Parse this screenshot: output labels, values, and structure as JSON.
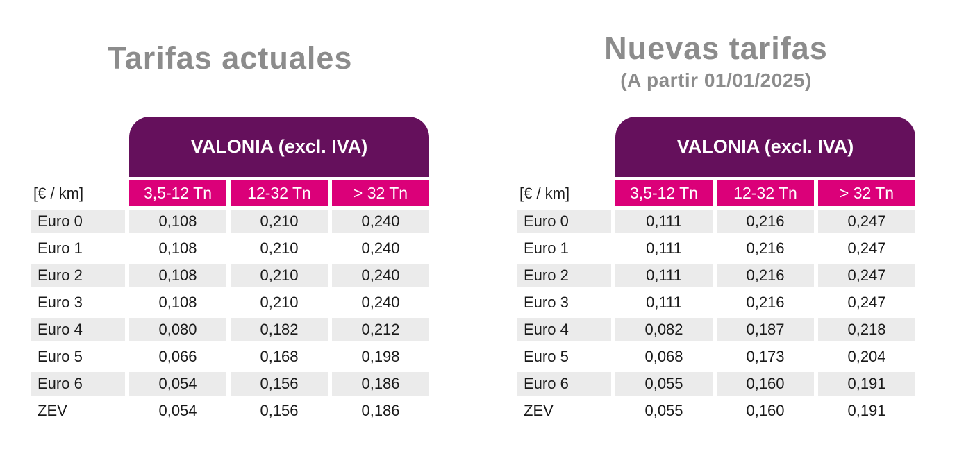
{
  "colors": {
    "purple": "#65105C",
    "pink": "#DB0079",
    "row_stripe": "#EBEBEB",
    "title_gray": "#8C8C8C",
    "text": "#1A1A1A",
    "header_text": "#FFFFFF"
  },
  "tables": [
    {
      "title": "Tarifas actuales",
      "header": "VALONIA (excl. IVA)",
      "unit_label": "[€ / km]",
      "columns": [
        "3,5-12 Tn",
        "12-32 Tn",
        "> 32 Tn"
      ],
      "rows": [
        {
          "label": "Euro 0",
          "values": [
            "0,108",
            "0,210",
            "0,240"
          ]
        },
        {
          "label": "Euro 1",
          "values": [
            "0,108",
            "0,210",
            "0,240"
          ]
        },
        {
          "label": "Euro 2",
          "values": [
            "0,108",
            "0,210",
            "0,240"
          ]
        },
        {
          "label": "Euro 3",
          "values": [
            "0,108",
            "0,210",
            "0,240"
          ]
        },
        {
          "label": "Euro 4",
          "values": [
            "0,080",
            "0,182",
            "0,212"
          ]
        },
        {
          "label": "Euro 5",
          "values": [
            "0,066",
            "0,168",
            "0,198"
          ]
        },
        {
          "label": "Euro 6",
          "values": [
            "0,054",
            "0,156",
            "0,186"
          ]
        },
        {
          "label": "ZEV",
          "values": [
            "0,054",
            "0,156",
            "0,186"
          ]
        }
      ]
    },
    {
      "title": "Nuevas tarifas",
      "subtitle": "(A partir 01/01/2025)",
      "header": "VALONIA (excl. IVA)",
      "unit_label": "[€ / km]",
      "columns": [
        "3,5-12 Tn",
        "12-32 Tn",
        "> 32 Tn"
      ],
      "rows": [
        {
          "label": "Euro 0",
          "values": [
            "0,111",
            "0,216",
            "0,247"
          ]
        },
        {
          "label": "Euro 1",
          "values": [
            "0,111",
            "0,216",
            "0,247"
          ]
        },
        {
          "label": "Euro 2",
          "values": [
            "0,111",
            "0,216",
            "0,247"
          ]
        },
        {
          "label": "Euro 3",
          "values": [
            "0,111",
            "0,216",
            "0,247"
          ]
        },
        {
          "label": "Euro 4",
          "values": [
            "0,082",
            "0,187",
            "0,218"
          ]
        },
        {
          "label": "Euro 5",
          "values": [
            "0,068",
            "0,173",
            "0,204"
          ]
        },
        {
          "label": "Euro 6",
          "values": [
            "0,055",
            "0,160",
            "0,191"
          ]
        },
        {
          "label": "ZEV",
          "values": [
            "0,055",
            "0,160",
            "0,191"
          ]
        }
      ]
    }
  ]
}
